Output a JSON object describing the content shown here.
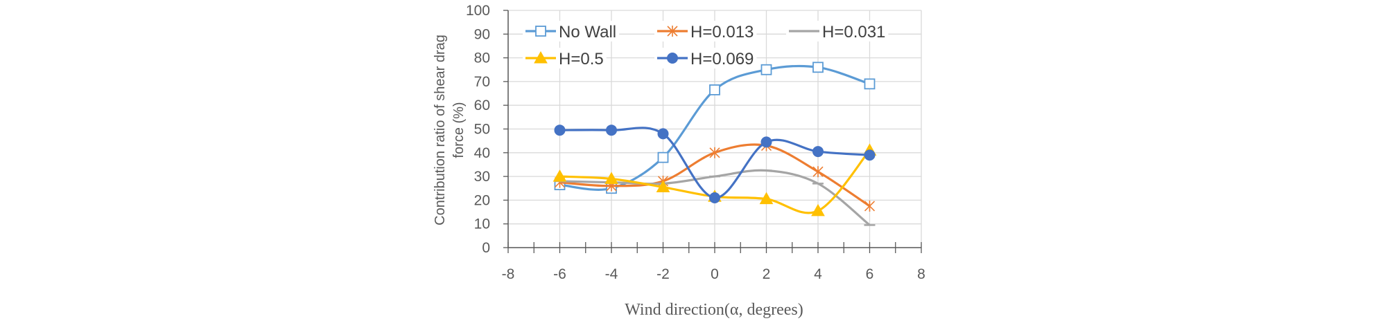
{
  "chart_data": {
    "type": "line",
    "xlabel": "Wind direction(α, degrees)",
    "ylabel_lines": [
      "Contribution  ratio of shear drag",
      "force (%)"
    ],
    "xlim": [
      -8,
      8
    ],
    "ylim": [
      0,
      100
    ],
    "x_ticks": [
      -8,
      -6,
      -4,
      -2,
      0,
      2,
      4,
      6,
      8
    ],
    "y_ticks": [
      0,
      10,
      20,
      30,
      40,
      50,
      60,
      70,
      80,
      90,
      100
    ],
    "grid": true,
    "legend_position": "top-inside",
    "x": [
      -6,
      -4,
      -2,
      0,
      2,
      4,
      6
    ],
    "series": [
      {
        "name": "No Wall",
        "color": "#5B9BD5",
        "marker": "open-square",
        "values": [
          26.5,
          25,
          38,
          66.5,
          75,
          76,
          69
        ]
      },
      {
        "name": "H=0.013",
        "color": "#ED7D31",
        "marker": "star",
        "values": [
          27.5,
          26,
          28,
          40,
          43,
          32,
          17.5
        ]
      },
      {
        "name": "H=0.031",
        "color": "#A5A5A5",
        "marker": "dash",
        "values": [
          28,
          27.5,
          27,
          30,
          32.5,
          27,
          9.5
        ]
      },
      {
        "name": "H=0.5",
        "color": "#FFC000",
        "marker": "triangle",
        "values": [
          30,
          29,
          25.5,
          21.5,
          20.5,
          15.5,
          41
        ]
      },
      {
        "name": "H=0.069",
        "color": "#4472C4",
        "marker": "circle",
        "values": [
          49.5,
          49.5,
          48,
          21,
          44.5,
          40.5,
          39
        ]
      }
    ]
  }
}
